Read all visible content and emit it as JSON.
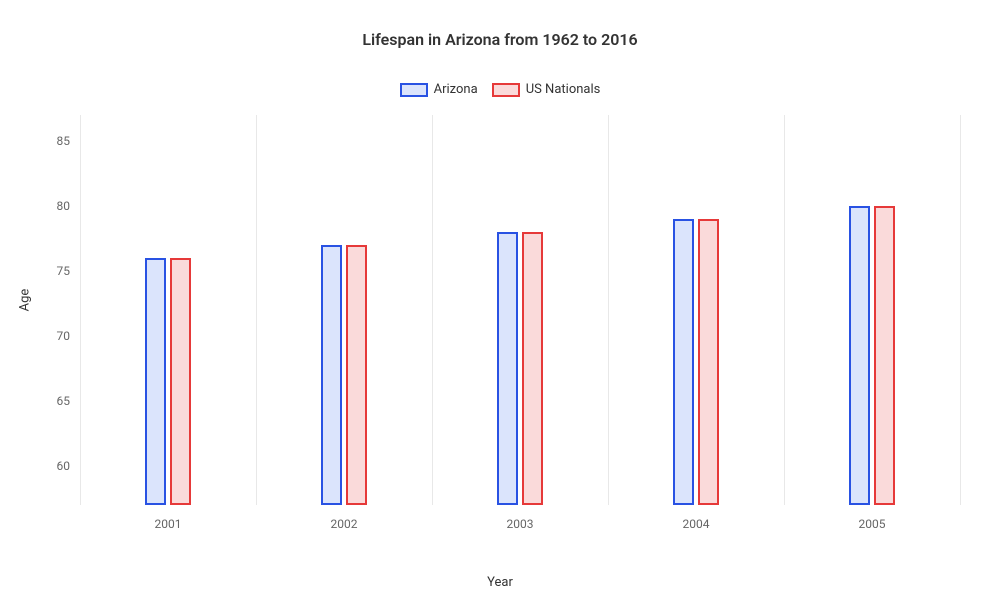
{
  "chart": {
    "type": "bar",
    "title": "Lifespan in Arizona from 1962 to 2016",
    "title_fontsize": 16,
    "background_color": "#ffffff",
    "grid_color": "#e8e8e8",
    "text_color": "#333333",
    "tick_color": "#666666",
    "x_axis_title": "Year",
    "y_axis_title": "Age",
    "categories": [
      "2001",
      "2002",
      "2003",
      "2004",
      "2005"
    ],
    "series": [
      {
        "name": "Arizona",
        "values": [
          76,
          77,
          78,
          79,
          80
        ],
        "border_color": "#2952e3",
        "fill_color": "#dbe4fc"
      },
      {
        "name": "US Nationals",
        "values": [
          76,
          77,
          78,
          79,
          80
        ],
        "border_color": "#e63939",
        "fill_color": "#fadada"
      }
    ],
    "ylim": [
      57,
      87
    ],
    "yticks": [
      60,
      65,
      70,
      75,
      80,
      85
    ],
    "bar_width_pct": 12,
    "bar_gap_pct": 2,
    "label_fontsize": 13,
    "tick_fontsize": 12,
    "legend_swatch_w": 28,
    "legend_swatch_h": 14
  }
}
